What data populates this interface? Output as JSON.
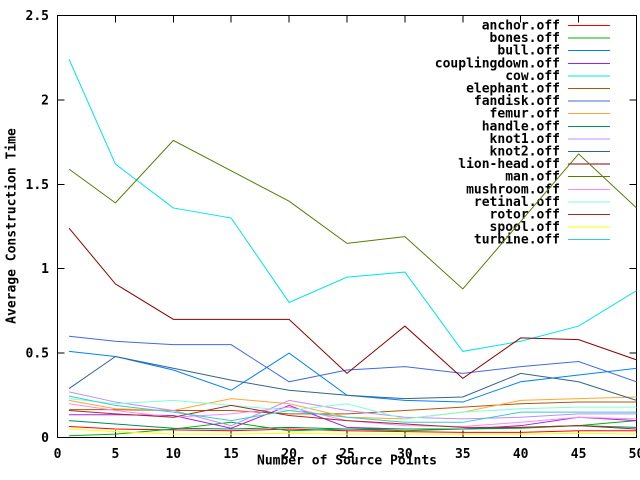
{
  "chart_data": {
    "type": "line",
    "title": "",
    "xlabel": "Number of Source Points",
    "ylabel": "Average Construction Time",
    "xlim": [
      0,
      50
    ],
    "ylim": [
      0,
      2.5
    ],
    "xticks": {
      "values": [
        0,
        5,
        10,
        15,
        20,
        25,
        30,
        35,
        40,
        45,
        50
      ],
      "labels": [
        "0",
        "5",
        "10",
        "15",
        "20",
        "25",
        "30",
        "35",
        "40",
        "45",
        "50"
      ]
    },
    "yticks": {
      "values": [
        0,
        0.5,
        1,
        1.5,
        2,
        2.5
      ],
      "labels": [
        "0",
        "0.5",
        "1",
        "1.5",
        "2",
        "2.5"
      ]
    },
    "grid": false,
    "legend_position": "top-right-inside",
    "background": "#ffffff",
    "axis_color": "#000000",
    "x": [
      1,
      5,
      10,
      15,
      20,
      25,
      30,
      35,
      40,
      45,
      50
    ],
    "series": [
      {
        "name": "anchor.off",
        "color": "#ff0000",
        "values": [
          0.065,
          0.05,
          0.045,
          0.04,
          0.05,
          0.04,
          0.035,
          0.03,
          0.03,
          0.04,
          0.04
        ]
      },
      {
        "name": "bones.off",
        "color": "#00b000",
        "values": [
          0.01,
          0.02,
          0.05,
          0.09,
          0.04,
          0.05,
          0.04,
          0.05,
          0.055,
          0.07,
          0.1
        ]
      },
      {
        "name": "bull.off",
        "color": "#0080ff",
        "values": [
          0.51,
          0.48,
          0.4,
          0.28,
          0.5,
          0.25,
          0.22,
          0.21,
          0.33,
          0.37,
          0.41
        ]
      },
      {
        "name": "couplingdown.off",
        "color": "#a020f0",
        "values": [
          0.135,
          0.135,
          0.13,
          0.055,
          0.19,
          0.06,
          0.05,
          0.05,
          0.07,
          0.12,
          0.1
        ]
      },
      {
        "name": "cow.off",
        "color": "#00e6e6",
        "values": [
          2.24,
          1.62,
          1.36,
          1.3,
          0.8,
          0.95,
          0.98,
          0.51,
          0.57,
          0.66,
          0.87
        ]
      },
      {
        "name": "elephant.off",
        "color": "#b4540a",
        "values": [
          0.165,
          0.165,
          0.16,
          0.16,
          0.14,
          0.14,
          0.16,
          0.18,
          0.2,
          0.21,
          0.21
        ]
      },
      {
        "name": "fandisk.off",
        "color": "#4169e1",
        "values": [
          0.6,
          0.57,
          0.55,
          0.55,
          0.33,
          0.4,
          0.42,
          0.38,
          0.42,
          0.45,
          0.33
        ]
      },
      {
        "name": "femur.off",
        "color": "#ffa533",
        "values": [
          0.22,
          0.17,
          0.16,
          0.23,
          0.2,
          0.12,
          0.11,
          0.15,
          0.22,
          0.23,
          0.24
        ]
      },
      {
        "name": "handle.off",
        "color": "#008c58",
        "values": [
          0.1,
          0.08,
          0.055,
          0.05,
          0.06,
          0.05,
          0.05,
          0.05,
          0.06,
          0.07,
          0.06
        ]
      },
      {
        "name": "knot1.off",
        "color": "#bf8cff",
        "values": [
          0.27,
          0.21,
          0.16,
          0.07,
          0.22,
          0.16,
          0.12,
          0.11,
          0.12,
          0.14,
          0.14
        ]
      },
      {
        "name": "knot2.off",
        "color": "#35638b",
        "values": [
          0.29,
          0.48,
          0.41,
          0.34,
          0.28,
          0.25,
          0.23,
          0.24,
          0.38,
          0.33,
          0.22
        ]
      },
      {
        "name": "lion-head.off",
        "color": "#8b0000",
        "values": [
          1.24,
          0.91,
          0.7,
          0.7,
          0.7,
          0.38,
          0.66,
          0.35,
          0.59,
          0.58,
          0.46
        ]
      },
      {
        "name": "man.off",
        "color": "#567d00",
        "values": [
          1.59,
          1.39,
          1.76,
          1.58,
          1.4,
          1.15,
          1.19,
          0.88,
          1.28,
          1.68,
          1.36
        ]
      },
      {
        "name": "mushroom.off",
        "color": "#f78cf7",
        "values": [
          0.2,
          0.16,
          0.12,
          0.14,
          0.18,
          0.1,
          0.07,
          0.065,
          0.09,
          0.12,
          0.11
        ]
      },
      {
        "name": "retinal.off",
        "color": "#7fffd4",
        "values": [
          0.23,
          0.2,
          0.22,
          0.19,
          0.16,
          0.2,
          0.11,
          0.15,
          0.17,
          0.18,
          0.18
        ]
      },
      {
        "name": "rotor.off",
        "color": "#a52a2a",
        "values": [
          0.16,
          0.14,
          0.12,
          0.19,
          0.13,
          0.1,
          0.08,
          0.06,
          0.06,
          0.07,
          0.05
        ]
      },
      {
        "name": "spool.off",
        "color": "#ffff00",
        "values": [
          0.05,
          0.035,
          0.02,
          0.02,
          0.025,
          0.02,
          0.02,
          0.02,
          0.02,
          0.025,
          0.02
        ]
      },
      {
        "name": "turbine.off",
        "color": "#33cccc",
        "values": [
          0.245,
          0.19,
          0.15,
          0.1,
          0.16,
          0.12,
          0.09,
          0.09,
          0.15,
          0.15,
          0.15
        ]
      }
    ]
  },
  "plot_geometry_note": ""
}
